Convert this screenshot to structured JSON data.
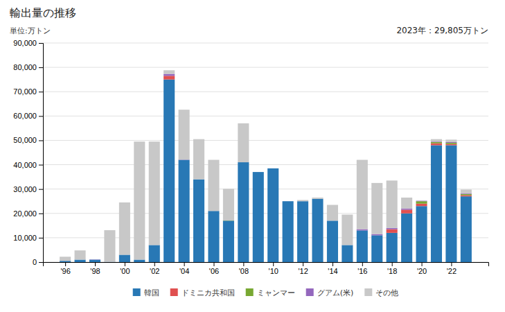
{
  "chart_data": {
    "type": "bar",
    "stacked": true,
    "title": "輸出量の推移",
    "ylabel": "単位:万トン",
    "annotation": "2023年：29,805万トン",
    "x": [
      1996,
      1997,
      1998,
      1999,
      2000,
      2001,
      2002,
      2003,
      2004,
      2005,
      2006,
      2007,
      2008,
      2009,
      2010,
      2011,
      2012,
      2013,
      2014,
      2015,
      2016,
      2017,
      2018,
      2019,
      2020,
      2021,
      2022,
      2023
    ],
    "series": [
      {
        "name": "韓国",
        "color": "#2878b5",
        "values": [
          500,
          1000,
          1000,
          100,
          3000,
          1000,
          7000,
          75000,
          42000,
          34000,
          21000,
          17000,
          41000,
          37000,
          38500,
          25000,
          25000,
          26000,
          17000,
          7000,
          13000,
          11000,
          12000,
          20000,
          23000,
          48000,
          48000,
          27000
        ]
      },
      {
        "name": "ドミニカ共和国",
        "color": "#e05050",
        "values": [
          0,
          0,
          0,
          0,
          0,
          0,
          0,
          1500,
          0,
          0,
          0,
          0,
          0,
          0,
          0,
          0,
          0,
          0,
          0,
          0,
          0,
          0,
          1500,
          1500,
          1000,
          800,
          500,
          500
        ]
      },
      {
        "name": "ミャンマー",
        "color": "#78a832",
        "values": [
          0,
          0,
          0,
          0,
          0,
          0,
          0,
          0,
          0,
          0,
          0,
          100,
          0,
          0,
          0,
          0,
          0,
          0,
          0,
          0,
          0,
          0,
          0,
          0,
          1000,
          500,
          500,
          500
        ]
      },
      {
        "name": "グアム(米)",
        "color": "#9467bd",
        "values": [
          0,
          0,
          100,
          0,
          0,
          0,
          0,
          800,
          100,
          0,
          0,
          0,
          0,
          0,
          0,
          0,
          0,
          0,
          0,
          0,
          500,
          500,
          500,
          500,
          200,
          200,
          300,
          300
        ]
      },
      {
        "name": "その他",
        "color": "#c8c8c8",
        "values": [
          1700,
          3800,
          0,
          13000,
          21500,
          48500,
          42500,
          1500,
          20500,
          16500,
          21000,
          13000,
          16000,
          0,
          0,
          0,
          500,
          500,
          6500,
          12500,
          28500,
          21000,
          19500,
          4500,
          0,
          1000,
          1000,
          1500
        ]
      }
    ],
    "xlim": [
      1994.5,
      2024.5
    ],
    "xticks": [
      {
        "value": 1996,
        "label": "'96"
      },
      {
        "value": 1998,
        "label": "'98"
      },
      {
        "value": 2000,
        "label": "'00"
      },
      {
        "value": 2002,
        "label": "'02"
      },
      {
        "value": 2004,
        "label": "'04"
      },
      {
        "value": 2006,
        "label": "'06"
      },
      {
        "value": 2008,
        "label": "'08"
      },
      {
        "value": 2010,
        "label": "'10"
      },
      {
        "value": 2012,
        "label": "'12"
      },
      {
        "value": 2014,
        "label": "'14"
      },
      {
        "value": 2016,
        "label": "'16"
      },
      {
        "value": 2018,
        "label": "'18"
      },
      {
        "value": 2020,
        "label": "'20"
      },
      {
        "value": 2022,
        "label": "'22"
      }
    ],
    "ylim": [
      0,
      90000
    ],
    "yticks": [
      0,
      {
        "value": 10000,
        "label": "10,000"
      },
      {
        "value": 20000,
        "label": "20,000"
      },
      {
        "value": 30000,
        "label": "30,000"
      },
      {
        "value": 40000,
        "label": "40,000"
      },
      {
        "value": 50000,
        "label": "50,000"
      },
      {
        "value": 60000,
        "label": "60,000"
      },
      {
        "value": 70000,
        "label": "70,000"
      },
      {
        "value": 80000,
        "label": "80,000"
      },
      {
        "value": 90000,
        "label": "90,000"
      }
    ],
    "grid": true,
    "legend": "bottom"
  }
}
